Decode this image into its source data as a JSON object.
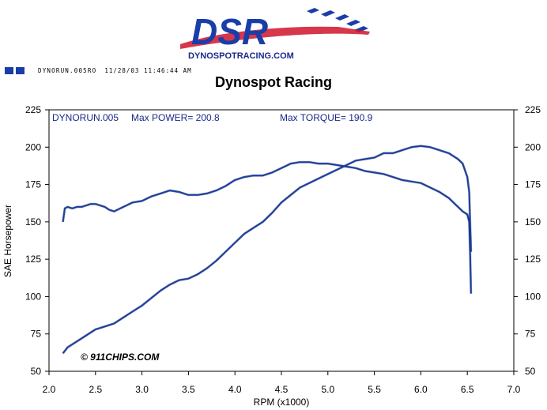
{
  "brand": {
    "logo_text": "DSR",
    "logo_url_text": "DYNOSPOTRACING.COM",
    "colors": {
      "blue": "#1a3ea8",
      "red": "#d0142c"
    }
  },
  "header": {
    "run_id": "DYNORUN.005RO",
    "timestamp": "11/28/03 11:46:44 AM",
    "title": "Dynospot Racing"
  },
  "annotations": {
    "run": "DYNORUN.005",
    "max_power": "Max POWER= 200.8",
    "max_torque": "Max TORQUE= 190.9",
    "watermark": "© 911CHIPS.COM"
  },
  "chart_data": {
    "type": "line",
    "title": "Dynospot Racing",
    "xlabel": "RPM (x1000)",
    "ylabel": "SAE Horsepower",
    "xlim": [
      2.0,
      7.0
    ],
    "ylim": [
      50,
      225
    ],
    "xticks": [
      "2.0",
      "2.5",
      "3.0",
      "3.5",
      "4.0",
      "4.5",
      "5.0",
      "5.5",
      "6.0",
      "6.5",
      "7.0"
    ],
    "yticks": [
      "50",
      "75",
      "100",
      "125",
      "150",
      "175",
      "200",
      "225"
    ],
    "yticks_right": [
      "50",
      "75",
      "100",
      "125",
      "150",
      "175",
      "200",
      "225"
    ],
    "grid": false,
    "line_color": "#1b3fa0",
    "series": [
      {
        "values_desc": "torque",
        "x": [
          2.15,
          2.17,
          2.2,
          2.25,
          2.3,
          2.35,
          2.4,
          2.45,
          2.5,
          2.55,
          2.6,
          2.65,
          2.7,
          2.8,
          2.9,
          3.0,
          3.1,
          3.2,
          3.3,
          3.4,
          3.5,
          3.6,
          3.7,
          3.8,
          3.9,
          4.0,
          4.1,
          4.2,
          4.3,
          4.4,
          4.5,
          4.6,
          4.7,
          4.8,
          4.9,
          5.0,
          5.1,
          5.2,
          5.3,
          5.4,
          5.5,
          5.6,
          5.7,
          5.8,
          5.9,
          6.0,
          6.1,
          6.2,
          6.3,
          6.4,
          6.45,
          6.5,
          6.52,
          6.53,
          6.54
        ],
        "y": [
          150,
          159,
          160,
          159,
          160,
          160,
          161,
          162,
          162,
          161,
          160,
          158,
          157,
          160,
          163,
          164,
          167,
          169,
          171,
          170,
          168,
          168,
          169,
          171,
          174,
          178,
          180,
          181,
          181,
          183,
          186,
          189,
          190,
          190,
          189,
          189,
          188,
          187,
          186,
          184,
          183,
          182,
          180,
          178,
          177,
          176,
          173,
          170,
          166,
          160,
          157,
          155,
          150,
          130,
          102
        ]
      },
      {
        "values_desc": "power",
        "x": [
          2.15,
          2.2,
          2.3,
          2.4,
          2.5,
          2.6,
          2.7,
          2.8,
          2.9,
          3.0,
          3.1,
          3.2,
          3.3,
          3.4,
          3.5,
          3.6,
          3.7,
          3.8,
          3.9,
          4.0,
          4.1,
          4.2,
          4.3,
          4.4,
          4.5,
          4.6,
          4.7,
          4.8,
          4.9,
          5.0,
          5.1,
          5.2,
          5.3,
          5.4,
          5.5,
          5.6,
          5.7,
          5.8,
          5.9,
          6.0,
          6.1,
          6.2,
          6.3,
          6.4,
          6.45,
          6.5,
          6.52,
          6.53,
          6.54
        ],
        "y": [
          62,
          66,
          70,
          74,
          78,
          80,
          82,
          86,
          90,
          94,
          99,
          104,
          108,
          111,
          112,
          115,
          119,
          124,
          130,
          136,
          142,
          146,
          150,
          156,
          163,
          168,
          173,
          176,
          179,
          182,
          185,
          188,
          191,
          192,
          193,
          196,
          196,
          198,
          200,
          200.8,
          200,
          198,
          196,
          192,
          189,
          180,
          170,
          150,
          130
        ]
      }
    ]
  }
}
